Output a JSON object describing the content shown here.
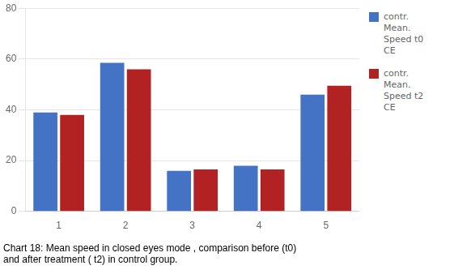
{
  "chart_data": {
    "type": "bar",
    "title": "Chart 18: Mean speed in closed eyes mode , comparison before (t0)\nand after treatment ( t2) in control group.",
    "categories": [
      "1",
      "2",
      "3",
      "4",
      "5"
    ],
    "series": [
      {
        "name": "contr.\nMean.\nSpeed t0\nCE",
        "color": "#4472C4",
        "values": [
          39,
          58.5,
          16,
          18,
          46
        ]
      },
      {
        "name": "contr.\nMean.\nSpeed t2\nCE",
        "color": "#B22222",
        "values": [
          38,
          56,
          16.5,
          16.5,
          49.5
        ]
      }
    ],
    "ylim": [
      0,
      80
    ],
    "yticks": [
      0,
      20,
      40,
      60,
      80
    ],
    "grid": true,
    "legend": "right"
  }
}
